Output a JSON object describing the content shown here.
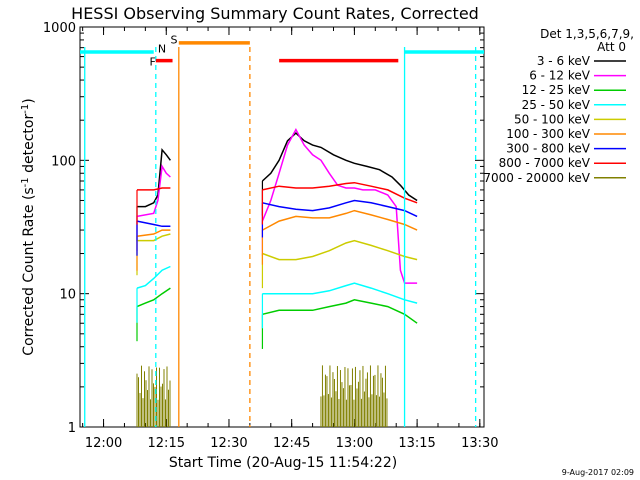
{
  "chart_data": {
    "type": "line",
    "title": "HESSI Observing Summary Count Rates, Corrected",
    "xlabel": "Start Time (20-Aug-15 11:54:22)",
    "ylabel_main": "Corrected Count Rate (s",
    "ylabel_sup1": "-1",
    "ylabel_mid": " detector",
    "ylabel_sup2": "-1",
    "ylabel_end": ")",
    "xlim": [
      "11:54:22",
      "13:31:00"
    ],
    "ylim": [
      1,
      1000
    ],
    "yscale": "log",
    "x_ticks": [
      "12:00",
      "12:15",
      "12:30",
      "12:45",
      "13:00",
      "13:15",
      "13:30"
    ],
    "y_ticks": [
      "1",
      "10",
      "100",
      "1000"
    ],
    "legend_title": [
      "Det 1,3,5,6,7,9,",
      "Att 0"
    ],
    "legend_placement": "right",
    "flag_labels": {
      "F": "F",
      "N": "N",
      "S": "S"
    },
    "footer_date": "9-Aug-2017 02:09",
    "series": [
      {
        "name": "3 - 6 keV",
        "color": "#000000",
        "segments": [
          [
            [
              "12:08",
              45
            ],
            [
              "12:10",
              45
            ],
            [
              "12:12",
              48
            ],
            [
              "12:13",
              55
            ],
            [
              "12:14",
              120
            ],
            [
              "12:15",
              110
            ],
            [
              "12:16",
              100
            ]
          ],
          [
            [
              "12:38",
              70
            ],
            [
              "12:40",
              80
            ],
            [
              "12:42",
              100
            ],
            [
              "12:44",
              140
            ],
            [
              "12:46",
              160
            ],
            [
              "12:48",
              140
            ],
            [
              "12:50",
              130
            ],
            [
              "12:52",
              125
            ],
            [
              "12:55",
              110
            ],
            [
              "12:58",
              100
            ],
            [
              "13:00",
              95
            ],
            [
              "13:03",
              90
            ],
            [
              "13:06",
              85
            ],
            [
              "13:09",
              75
            ],
            [
              "13:11",
              65
            ],
            [
              "13:13",
              55
            ],
            [
              "13:15",
              50
            ]
          ]
        ]
      },
      {
        "name": "6 - 12 keV",
        "color": "#ff00ff",
        "segments": [
          [
            [
              "12:08",
              38
            ],
            [
              "12:12",
              40
            ],
            [
              "12:13",
              50
            ],
            [
              "12:14",
              90
            ],
            [
              "12:15",
              80
            ],
            [
              "12:16",
              75
            ]
          ],
          [
            [
              "12:38",
              35
            ],
            [
              "12:40",
              50
            ],
            [
              "12:42",
              80
            ],
            [
              "12:44",
              130
            ],
            [
              "12:46",
              170
            ],
            [
              "12:48",
              130
            ],
            [
              "12:50",
              110
            ],
            [
              "12:52",
              100
            ],
            [
              "12:54",
              80
            ],
            [
              "12:56",
              65
            ],
            [
              "12:58",
              62
            ],
            [
              "13:00",
              62
            ],
            [
              "13:02",
              60
            ],
            [
              "13:05",
              60
            ],
            [
              "13:08",
              55
            ],
            [
              "13:10",
              45
            ],
            [
              "13:11",
              15
            ],
            [
              "13:12",
              12
            ],
            [
              "13:15",
              12
            ]
          ]
        ]
      },
      {
        "name": "12 - 25 keV",
        "color": "#00cc00",
        "segments": [
          [
            [
              "12:08",
              8
            ],
            [
              "12:10",
              8.5
            ],
            [
              "12:12",
              9
            ],
            [
              "12:14",
              10
            ],
            [
              "12:16",
              11
            ]
          ],
          [
            [
              "12:38",
              7
            ],
            [
              "12:42",
              7.5
            ],
            [
              "12:46",
              7.5
            ],
            [
              "12:50",
              7.5
            ],
            [
              "12:54",
              8
            ],
            [
              "12:58",
              8.5
            ],
            [
              "13:00",
              9
            ],
            [
              "13:04",
              8.5
            ],
            [
              "13:08",
              8
            ],
            [
              "13:12",
              7
            ],
            [
              "13:15",
              6
            ]
          ]
        ]
      },
      {
        "name": "25 - 50 keV",
        "color": "#00ffff",
        "segments": [
          [
            [
              "12:08",
              11
            ],
            [
              "12:10",
              11.5
            ],
            [
              "12:12",
              13
            ],
            [
              "12:14",
              15
            ],
            [
              "12:16",
              16
            ]
          ],
          [
            [
              "12:38",
              10
            ],
            [
              "12:42",
              10
            ],
            [
              "12:46",
              10
            ],
            [
              "12:50",
              10
            ],
            [
              "12:54",
              10.5
            ],
            [
              "12:58",
              11.5
            ],
            [
              "13:00",
              12
            ],
            [
              "13:04",
              11
            ],
            [
              "13:08",
              10
            ],
            [
              "13:12",
              9
            ],
            [
              "13:15",
              8.5
            ]
          ]
        ]
      },
      {
        "name": "50 - 100 keV",
        "color": "#cccc00",
        "segments": [
          [
            [
              "12:08",
              25
            ],
            [
              "12:12",
              25
            ],
            [
              "12:14",
              27
            ],
            [
              "12:16",
              28
            ]
          ],
          [
            [
              "12:38",
              20
            ],
            [
              "12:42",
              18
            ],
            [
              "12:46",
              18
            ],
            [
              "12:50",
              19
            ],
            [
              "12:54",
              21
            ],
            [
              "12:58",
              24
            ],
            [
              "13:00",
              25
            ],
            [
              "13:04",
              23
            ],
            [
              "13:08",
              21
            ],
            [
              "13:12",
              19
            ],
            [
              "13:15",
              18
            ]
          ]
        ]
      },
      {
        "name": "100 - 300 keV",
        "color": "#ff8800",
        "segments": [
          [
            [
              "12:08",
              27
            ],
            [
              "12:12",
              28
            ],
            [
              "12:14",
              30
            ],
            [
              "12:16",
              30
            ]
          ],
          [
            [
              "12:38",
              30
            ],
            [
              "12:42",
              35
            ],
            [
              "12:46",
              38
            ],
            [
              "12:50",
              37
            ],
            [
              "12:54",
              37
            ],
            [
              "12:58",
              40
            ],
            [
              "13:00",
              42
            ],
            [
              "13:04",
              39
            ],
            [
              "13:08",
              36
            ],
            [
              "13:12",
              33
            ],
            [
              "13:15",
              30
            ]
          ]
        ]
      },
      {
        "name": "300 - 800 keV",
        "color": "#0000ff",
        "segments": [
          [
            [
              "12:08",
              35
            ],
            [
              "12:12",
              33
            ],
            [
              "12:14",
              32
            ],
            [
              "12:16",
              32
            ]
          ],
          [
            [
              "12:38",
              48
            ],
            [
              "12:42",
              45
            ],
            [
              "12:46",
              43
            ],
            [
              "12:50",
              42
            ],
            [
              "12:54",
              44
            ],
            [
              "12:58",
              48
            ],
            [
              "13:00",
              50
            ],
            [
              "13:04",
              48
            ],
            [
              "13:08",
              45
            ],
            [
              "13:12",
              42
            ],
            [
              "13:15",
              38
            ]
          ]
        ]
      },
      {
        "name": "800 - 7000 keV",
        "color": "#ff0000",
        "segments": [
          [
            [
              "12:08",
              60
            ],
            [
              "12:12",
              60
            ],
            [
              "12:14",
              62
            ],
            [
              "12:16",
              62
            ]
          ],
          [
            [
              "12:38",
              60
            ],
            [
              "12:42",
              64
            ],
            [
              "12:46",
              62
            ],
            [
              "12:50",
              62
            ],
            [
              "12:54",
              64
            ],
            [
              "12:58",
              67
            ],
            [
              "13:00",
              68
            ],
            [
              "13:04",
              64
            ],
            [
              "13:08",
              60
            ],
            [
              "13:12",
              52
            ],
            [
              "13:15",
              48
            ]
          ]
        ]
      },
      {
        "name": "7000 - 20000 keV",
        "color": "#808000",
        "segments": [
          [
            [
              "12:08",
              2
            ],
            [
              "12:10",
              2
            ],
            [
              "12:12",
              2
            ],
            [
              "12:14",
              2
            ],
            [
              "12:16",
              2
            ]
          ],
          [
            [
              "12:52",
              2
            ],
            [
              "12:55",
              2.2
            ],
            [
              "12:58",
              2
            ],
            [
              "13:00",
              2
            ],
            [
              "13:02",
              2
            ],
            [
              "13:05",
              2
            ],
            [
              "13:08",
              2
            ]
          ]
        ]
      }
    ],
    "flag_bars": [
      {
        "label": "F",
        "color": "#ff0000",
        "y": 560,
        "x0": "12:12:30",
        "x1": "12:16:30"
      },
      {
        "label": "S",
        "color": "#ff8800",
        "y": 760,
        "x0": "12:18:00",
        "x1": "12:35:00"
      },
      {
        "label": "",
        "color": "#ff0000",
        "y": 560,
        "x0": "12:42:00",
        "x1": "13:10:30"
      },
      {
        "label": "",
        "color": "#00ffff",
        "y": 650,
        "x0": "11:54:22",
        "x1": "12:12:00"
      },
      {
        "label": "",
        "color": "#00ffff",
        "y": 650,
        "x0": "13:12:00",
        "x1": "13:31:00"
      }
    ],
    "vertical_lines": [
      {
        "time": "11:55:30",
        "color": "#00ffff",
        "style": "solid"
      },
      {
        "time": "12:12:30",
        "color": "#00ffff",
        "style": "dashed"
      },
      {
        "time": "12:18:00",
        "color": "#ff8800",
        "style": "solid"
      },
      {
        "time": "12:35:00",
        "color": "#ff8800",
        "style": "dashed"
      },
      {
        "time": "13:12:00",
        "color": "#00ffff",
        "style": "solid"
      },
      {
        "time": "13:29:00",
        "color": "#00ffff",
        "style": "dashed"
      }
    ]
  }
}
